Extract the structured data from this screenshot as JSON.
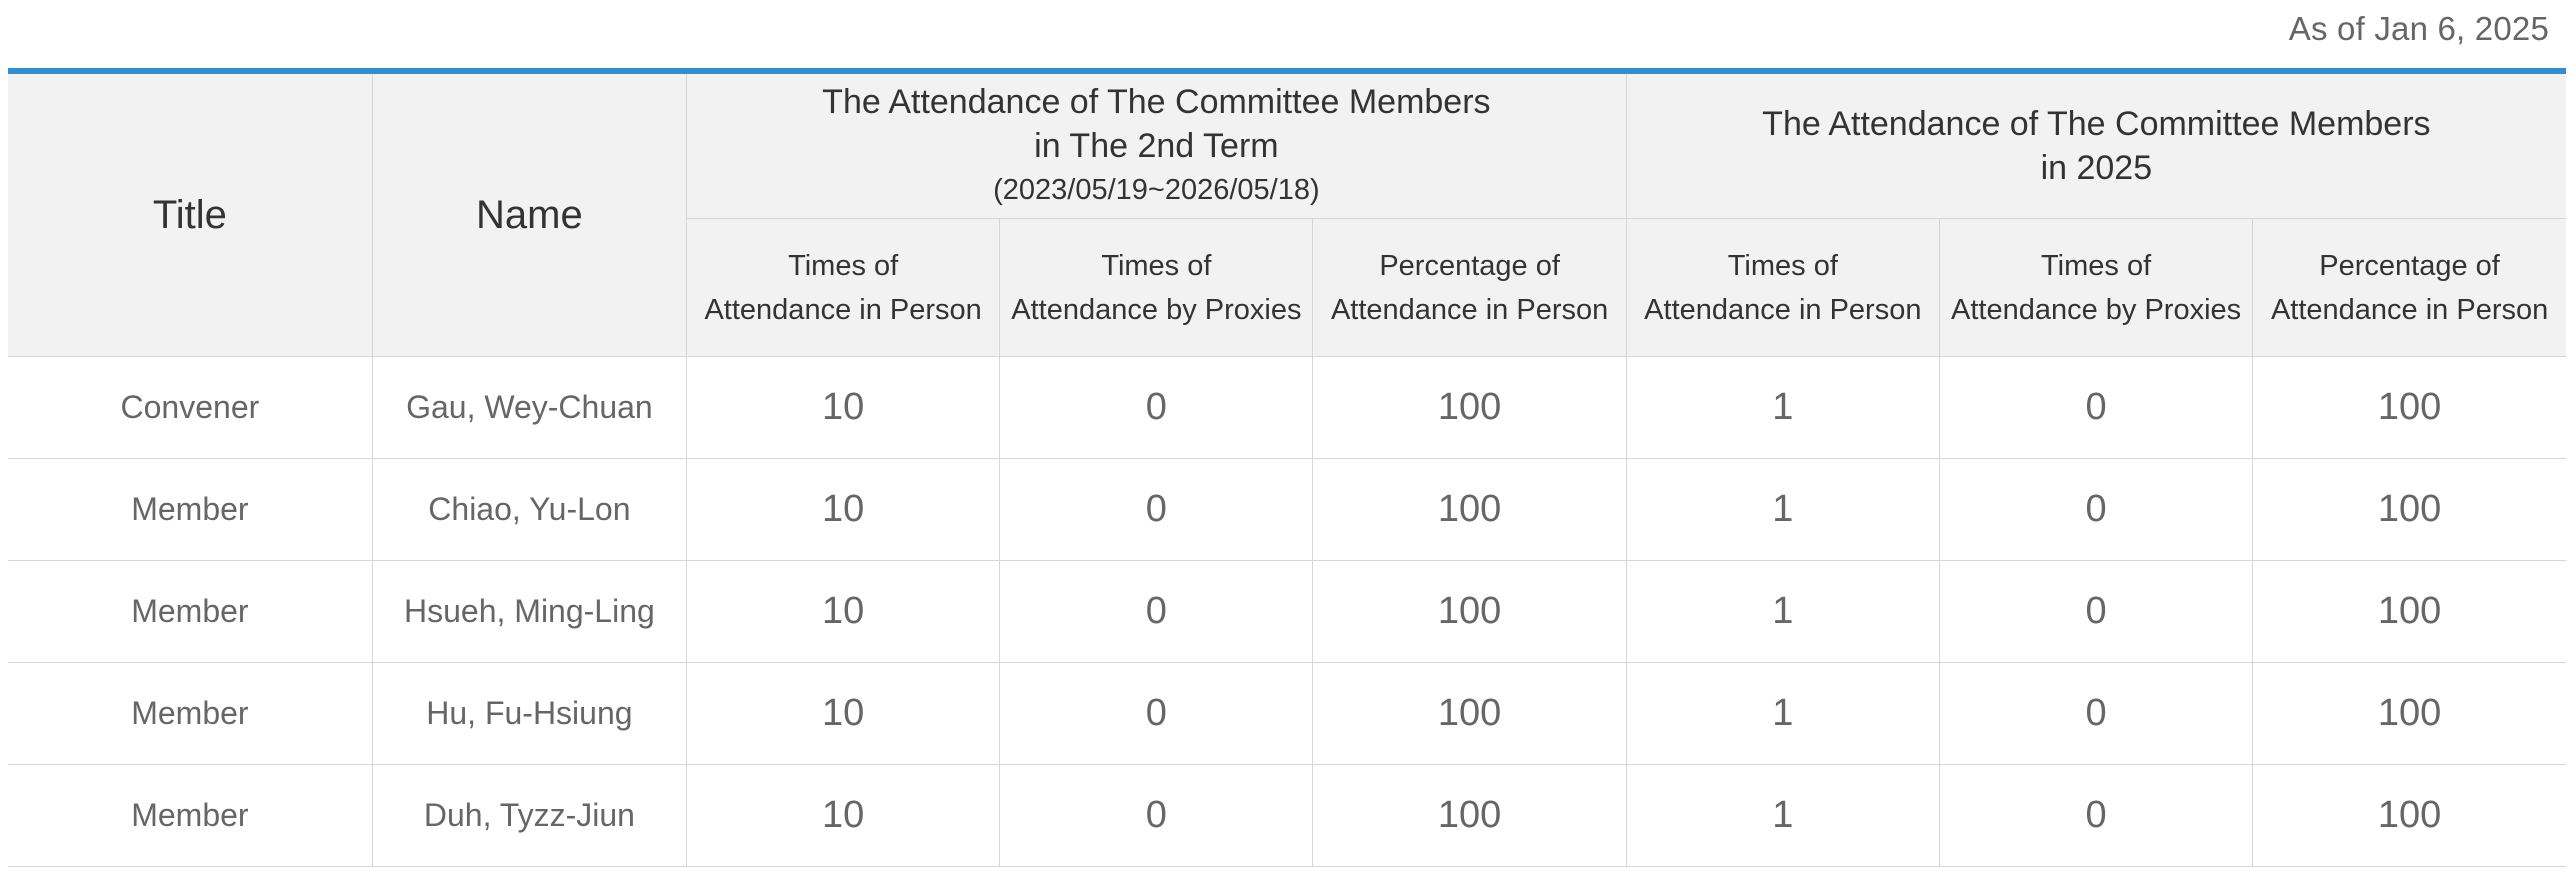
{
  "as_of": "As of Jan 6, 2025",
  "headers": {
    "title": "Title",
    "name": "Name",
    "group1": {
      "line1": "The Attendance of The Committee Members",
      "line2": "in The 2nd Term",
      "line3": "(2023/05/19~2026/05/18)"
    },
    "group2": {
      "line1": "The Attendance of The Committee Members",
      "line2": "in 2025"
    },
    "sub": [
      {
        "line1": "Times of",
        "line2": "Attendance in Person"
      },
      {
        "line1": "Times of",
        "line2": "Attendance by Proxies"
      },
      {
        "line1": "Percentage of",
        "line2": "Attendance in Person"
      },
      {
        "line1": "Times of",
        "line2": "Attendance in Person"
      },
      {
        "line1": "Times of",
        "line2": "Attendance by Proxies"
      },
      {
        "line1": "Percentage of",
        "line2": "Attendance in Person"
      }
    ]
  },
  "rows": [
    {
      "title": "Convener",
      "name": "Gau, Wey-Chuan",
      "values": [
        "10",
        "0",
        "100",
        "1",
        "0",
        "100"
      ]
    },
    {
      "title": "Member",
      "name": "Chiao, Yu-Lon",
      "values": [
        "10",
        "0",
        "100",
        "1",
        "0",
        "100"
      ]
    },
    {
      "title": "Member",
      "name": "Hsueh, Ming-Ling",
      "values": [
        "10",
        "0",
        "100",
        "1",
        "0",
        "100"
      ]
    },
    {
      "title": "Member",
      "name": "Hu, Fu-Hsiung",
      "values": [
        "10",
        "0",
        "100",
        "1",
        "0",
        "100"
      ]
    },
    {
      "title": "Member",
      "name": "Duh, Tyzz-Jiun",
      "values": [
        "10",
        "0",
        "100",
        "1",
        "0",
        "100"
      ]
    }
  ],
  "colors": {
    "accent": "#2f8fd0",
    "header_bg": "#f2f2f2",
    "border": "#d6d6d6"
  }
}
